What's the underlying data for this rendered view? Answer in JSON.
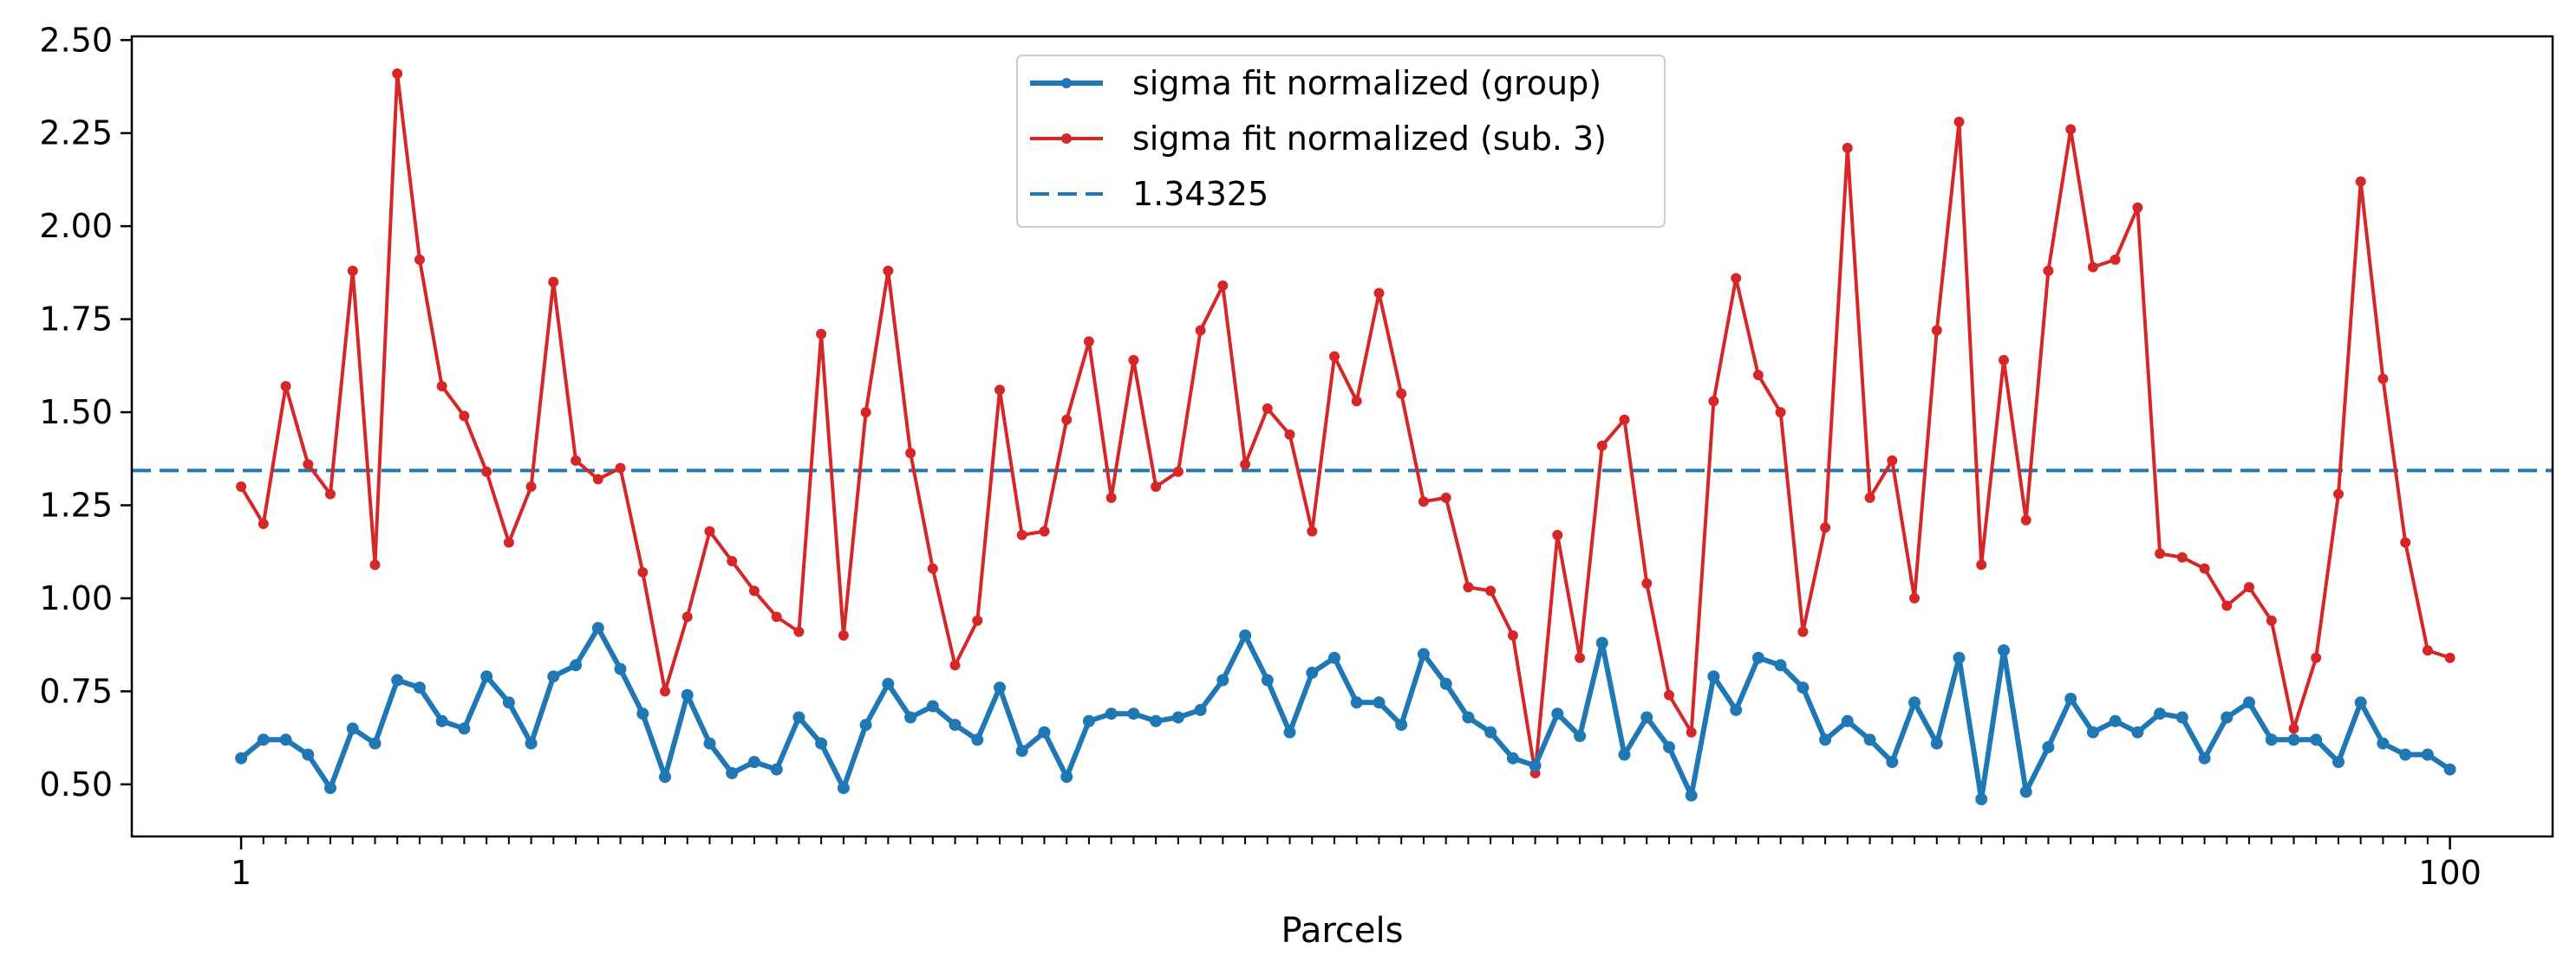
{
  "chart_data": {
    "type": "line",
    "xlabel": "Parcels",
    "ylabel": "",
    "xlim": [
      -3.9,
      104.6
    ],
    "ylim": [
      0.36,
      2.51
    ],
    "x_ticks_labeled": [
      {
        "value": 1,
        "label": "1"
      },
      {
        "value": 100,
        "label": "100"
      }
    ],
    "x_minor_ticks": "every integer parcel from 2 to 99",
    "y_ticks": [
      {
        "value": 0.5,
        "label": "0.50"
      },
      {
        "value": 0.75,
        "label": "0.75"
      },
      {
        "value": 1.0,
        "label": "1.00"
      },
      {
        "value": 1.25,
        "label": "1.25"
      },
      {
        "value": 1.5,
        "label": "1.50"
      },
      {
        "value": 1.75,
        "label": "1.75"
      },
      {
        "value": 2.0,
        "label": "2.00"
      },
      {
        "value": 2.25,
        "label": "2.25"
      },
      {
        "value": 2.5,
        "label": "2.50"
      }
    ],
    "grid": false,
    "legend_position": "top-center",
    "series": [
      {
        "name": "sigma fit normalized (group)",
        "color": "#1f77b4",
        "style": "solid",
        "marker": "circle",
        "values": [
          0.57,
          0.62,
          0.62,
          0.58,
          0.49,
          0.65,
          0.61,
          0.78,
          0.76,
          0.67,
          0.65,
          0.79,
          0.72,
          0.61,
          0.79,
          0.82,
          0.92,
          0.81,
          0.69,
          0.52,
          0.74,
          0.61,
          0.53,
          0.56,
          0.54,
          0.68,
          0.61,
          0.49,
          0.66,
          0.77,
          0.68,
          0.71,
          0.66,
          0.62,
          0.76,
          0.59,
          0.64,
          0.52,
          0.67,
          0.69,
          0.69,
          0.67,
          0.68,
          0.7,
          0.78,
          0.9,
          0.78,
          0.64,
          0.8,
          0.84,
          0.72,
          0.72,
          0.66,
          0.85,
          0.77,
          0.68,
          0.64,
          0.57,
          0.55,
          0.69,
          0.63,
          0.88,
          0.58,
          0.68,
          0.6,
          0.47,
          0.79,
          0.7,
          0.84,
          0.82,
          0.76,
          0.62,
          0.67,
          0.62,
          0.56,
          0.72,
          0.61,
          0.84,
          0.46,
          0.86,
          0.48,
          0.6,
          0.73,
          0.64,
          0.67,
          0.64,
          0.69,
          0.68,
          0.57,
          0.68,
          0.72,
          0.62,
          0.62,
          0.62,
          0.56,
          0.72,
          0.61,
          0.58,
          0.58,
          0.54
        ]
      },
      {
        "name": "sigma fit normalized (sub. 3)",
        "color": "#d62728",
        "style": "solid",
        "marker": "circle",
        "values": [
          1.3,
          1.2,
          1.57,
          1.36,
          1.28,
          1.88,
          1.09,
          2.41,
          1.91,
          1.57,
          1.49,
          1.34,
          1.15,
          1.3,
          1.85,
          1.37,
          1.32,
          1.35,
          1.07,
          0.75,
          0.95,
          1.18,
          1.1,
          1.02,
          0.95,
          0.91,
          1.71,
          0.9,
          1.5,
          1.88,
          1.39,
          1.08,
          0.82,
          0.94,
          1.56,
          1.17,
          1.18,
          1.48,
          1.69,
          1.27,
          1.64,
          1.3,
          1.34,
          1.72,
          1.84,
          1.36,
          1.51,
          1.44,
          1.18,
          1.65,
          1.53,
          1.82,
          1.55,
          1.26,
          1.27,
          1.03,
          1.02,
          0.9,
          0.53,
          1.17,
          0.84,
          1.41,
          1.48,
          1.04,
          0.74,
          0.64,
          1.53,
          1.86,
          1.6,
          1.5,
          0.91,
          1.19,
          2.21,
          1.27,
          1.37,
          1.0,
          1.72,
          2.28,
          1.09,
          1.64,
          1.21,
          1.88,
          2.26,
          1.89,
          1.91,
          2.05,
          1.12,
          1.11,
          1.08,
          0.98,
          1.03,
          0.94,
          0.65,
          0.84,
          1.28,
          2.12,
          1.59,
          1.15,
          0.86,
          0.84
        ]
      },
      {
        "name": "1.34325",
        "color": "#1f77b4",
        "style": "dashed",
        "type": "hline",
        "y": 1.34325
      }
    ]
  }
}
